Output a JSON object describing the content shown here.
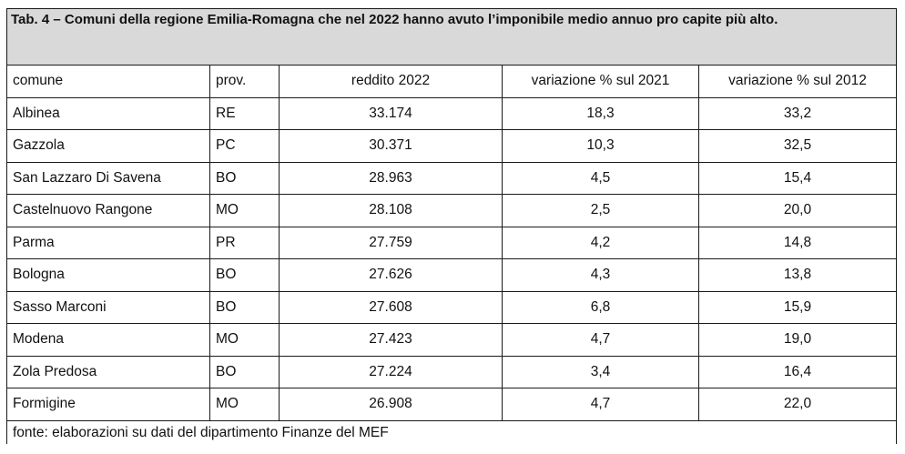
{
  "table": {
    "title": "Tab. 4 – Comuni della regione Emilia-Romagna che nel 2022 hanno avuto l’imponibile medio annuo pro capite più alto.",
    "headers": [
      "comune",
      "prov.",
      "reddito 2022",
      "variazione % sul 2021",
      "variazione % sul 2012"
    ],
    "rows": [
      [
        "Albinea",
        "RE",
        "33.174",
        "18,3",
        "33,2"
      ],
      [
        "Gazzola",
        "PC",
        "30.371",
        "10,3",
        "32,5"
      ],
      [
        "San Lazzaro Di Savena",
        "BO",
        "28.963",
        "4,5",
        "15,4"
      ],
      [
        "Castelnuovo Rangone",
        "MO",
        "28.108",
        "2,5",
        "20,0"
      ],
      [
        "Parma",
        "PR",
        "27.759",
        "4,2",
        "14,8"
      ],
      [
        "Bologna",
        "BO",
        "27.626",
        "4,3",
        "13,8"
      ],
      [
        "Sasso Marconi",
        "BO",
        "27.608",
        "6,8",
        "15,9"
      ],
      [
        "Modena",
        "MO",
        "27.423",
        "4,7",
        "19,0"
      ],
      [
        "Zola Predosa",
        "BO",
        "27.224",
        "3,4",
        "16,4"
      ],
      [
        "Formigine",
        "MO",
        "26.908",
        "4,7",
        "22,0"
      ]
    ],
    "source": "fonte: elaborazioni su dati del dipartimento Finanze del MEF"
  }
}
